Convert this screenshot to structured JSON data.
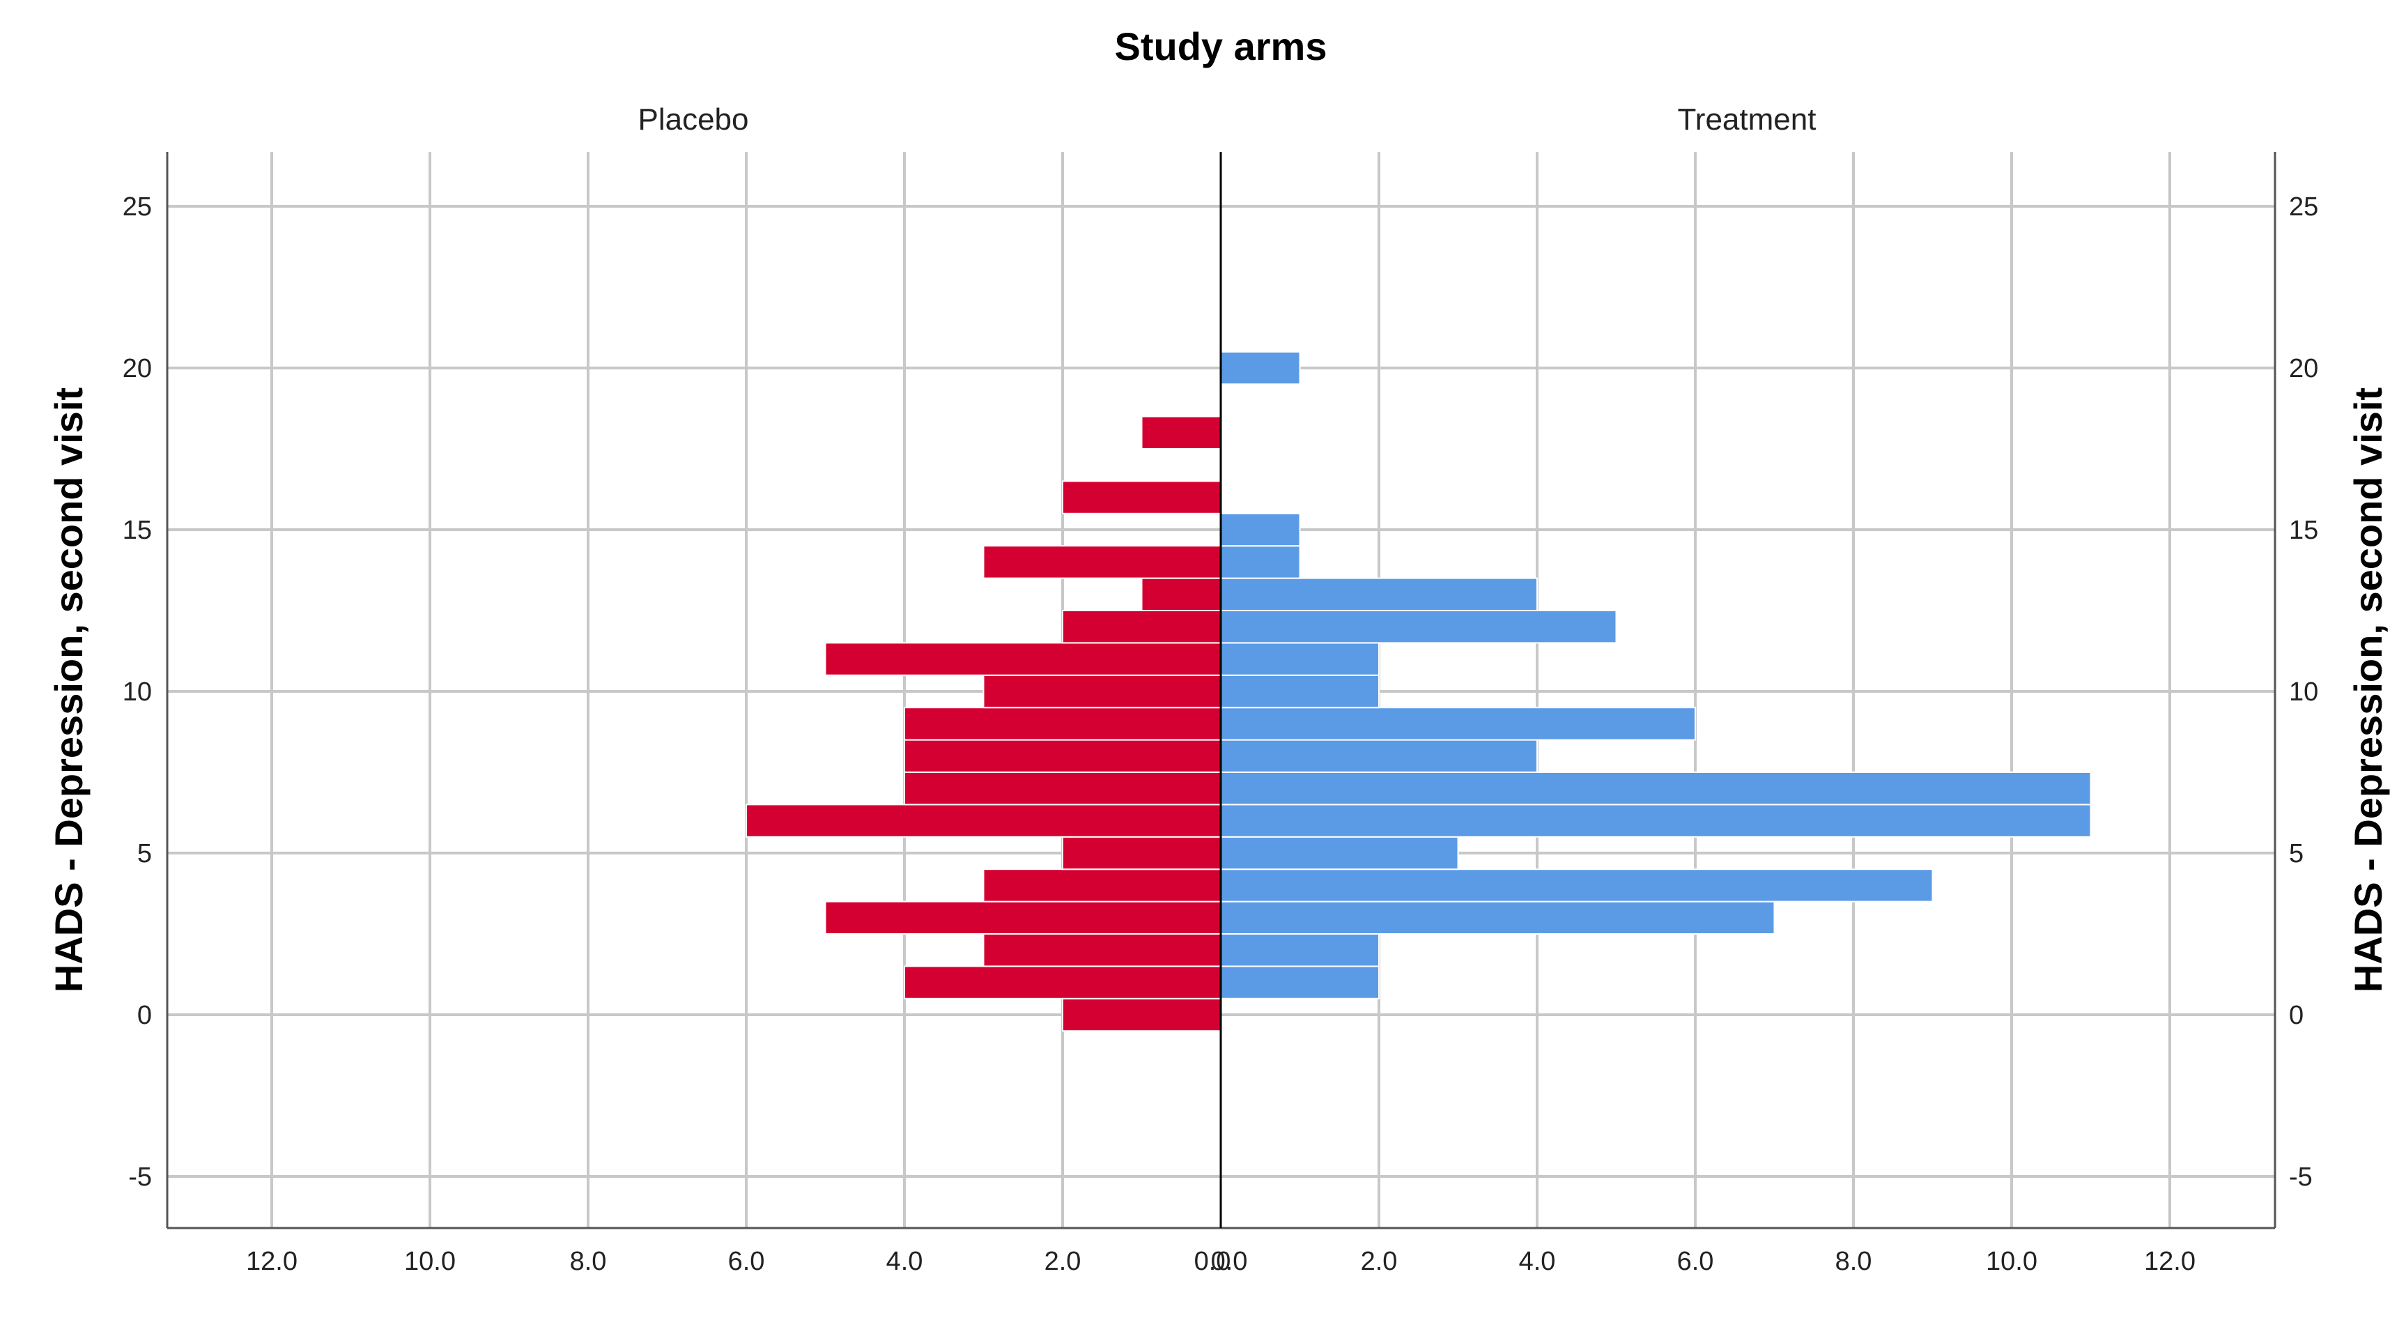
{
  "chart_data": {
    "type": "bar",
    "subtype": "population-pyramid-histogram",
    "title": "Study arms",
    "ylabel": "HADS - Depression, second visit",
    "xlabel": "",
    "ylim": [
      -6.5,
      26.8
    ],
    "xlim": [
      -13.3,
      13.3
    ],
    "y_ticks": [
      25,
      20,
      15,
      10,
      5,
      0,
      -5
    ],
    "x_ticks_left": [
      "12.0",
      "10.0",
      "8.0",
      "6.0",
      "4.0",
      "2.0",
      "0.0"
    ],
    "x_ticks_right": [
      "0.0",
      "2.0",
      "4.0",
      "6.0",
      "8.0",
      "10.0",
      "12.0"
    ],
    "series": [
      {
        "name": "Placebo",
        "side": "left",
        "color": "#d50032",
        "bins": [
          0,
          1,
          2,
          3,
          4,
          5,
          6,
          7,
          8,
          9,
          10,
          11,
          12,
          13,
          14,
          16,
          18
        ],
        "values": [
          2,
          4,
          3,
          5,
          3,
          2,
          6,
          4,
          4,
          4,
          3,
          5,
          2,
          1,
          3,
          2,
          1
        ]
      },
      {
        "name": "Treatment",
        "side": "right",
        "color": "#5b9be6",
        "bins": [
          1,
          2,
          3,
          4,
          5,
          6,
          7,
          8,
          9,
          10,
          11,
          12,
          13,
          14,
          15,
          20
        ],
        "values": [
          2,
          2,
          7,
          9,
          3,
          11,
          11,
          4,
          6,
          2,
          2,
          5,
          4,
          1,
          1,
          1
        ]
      }
    ]
  }
}
